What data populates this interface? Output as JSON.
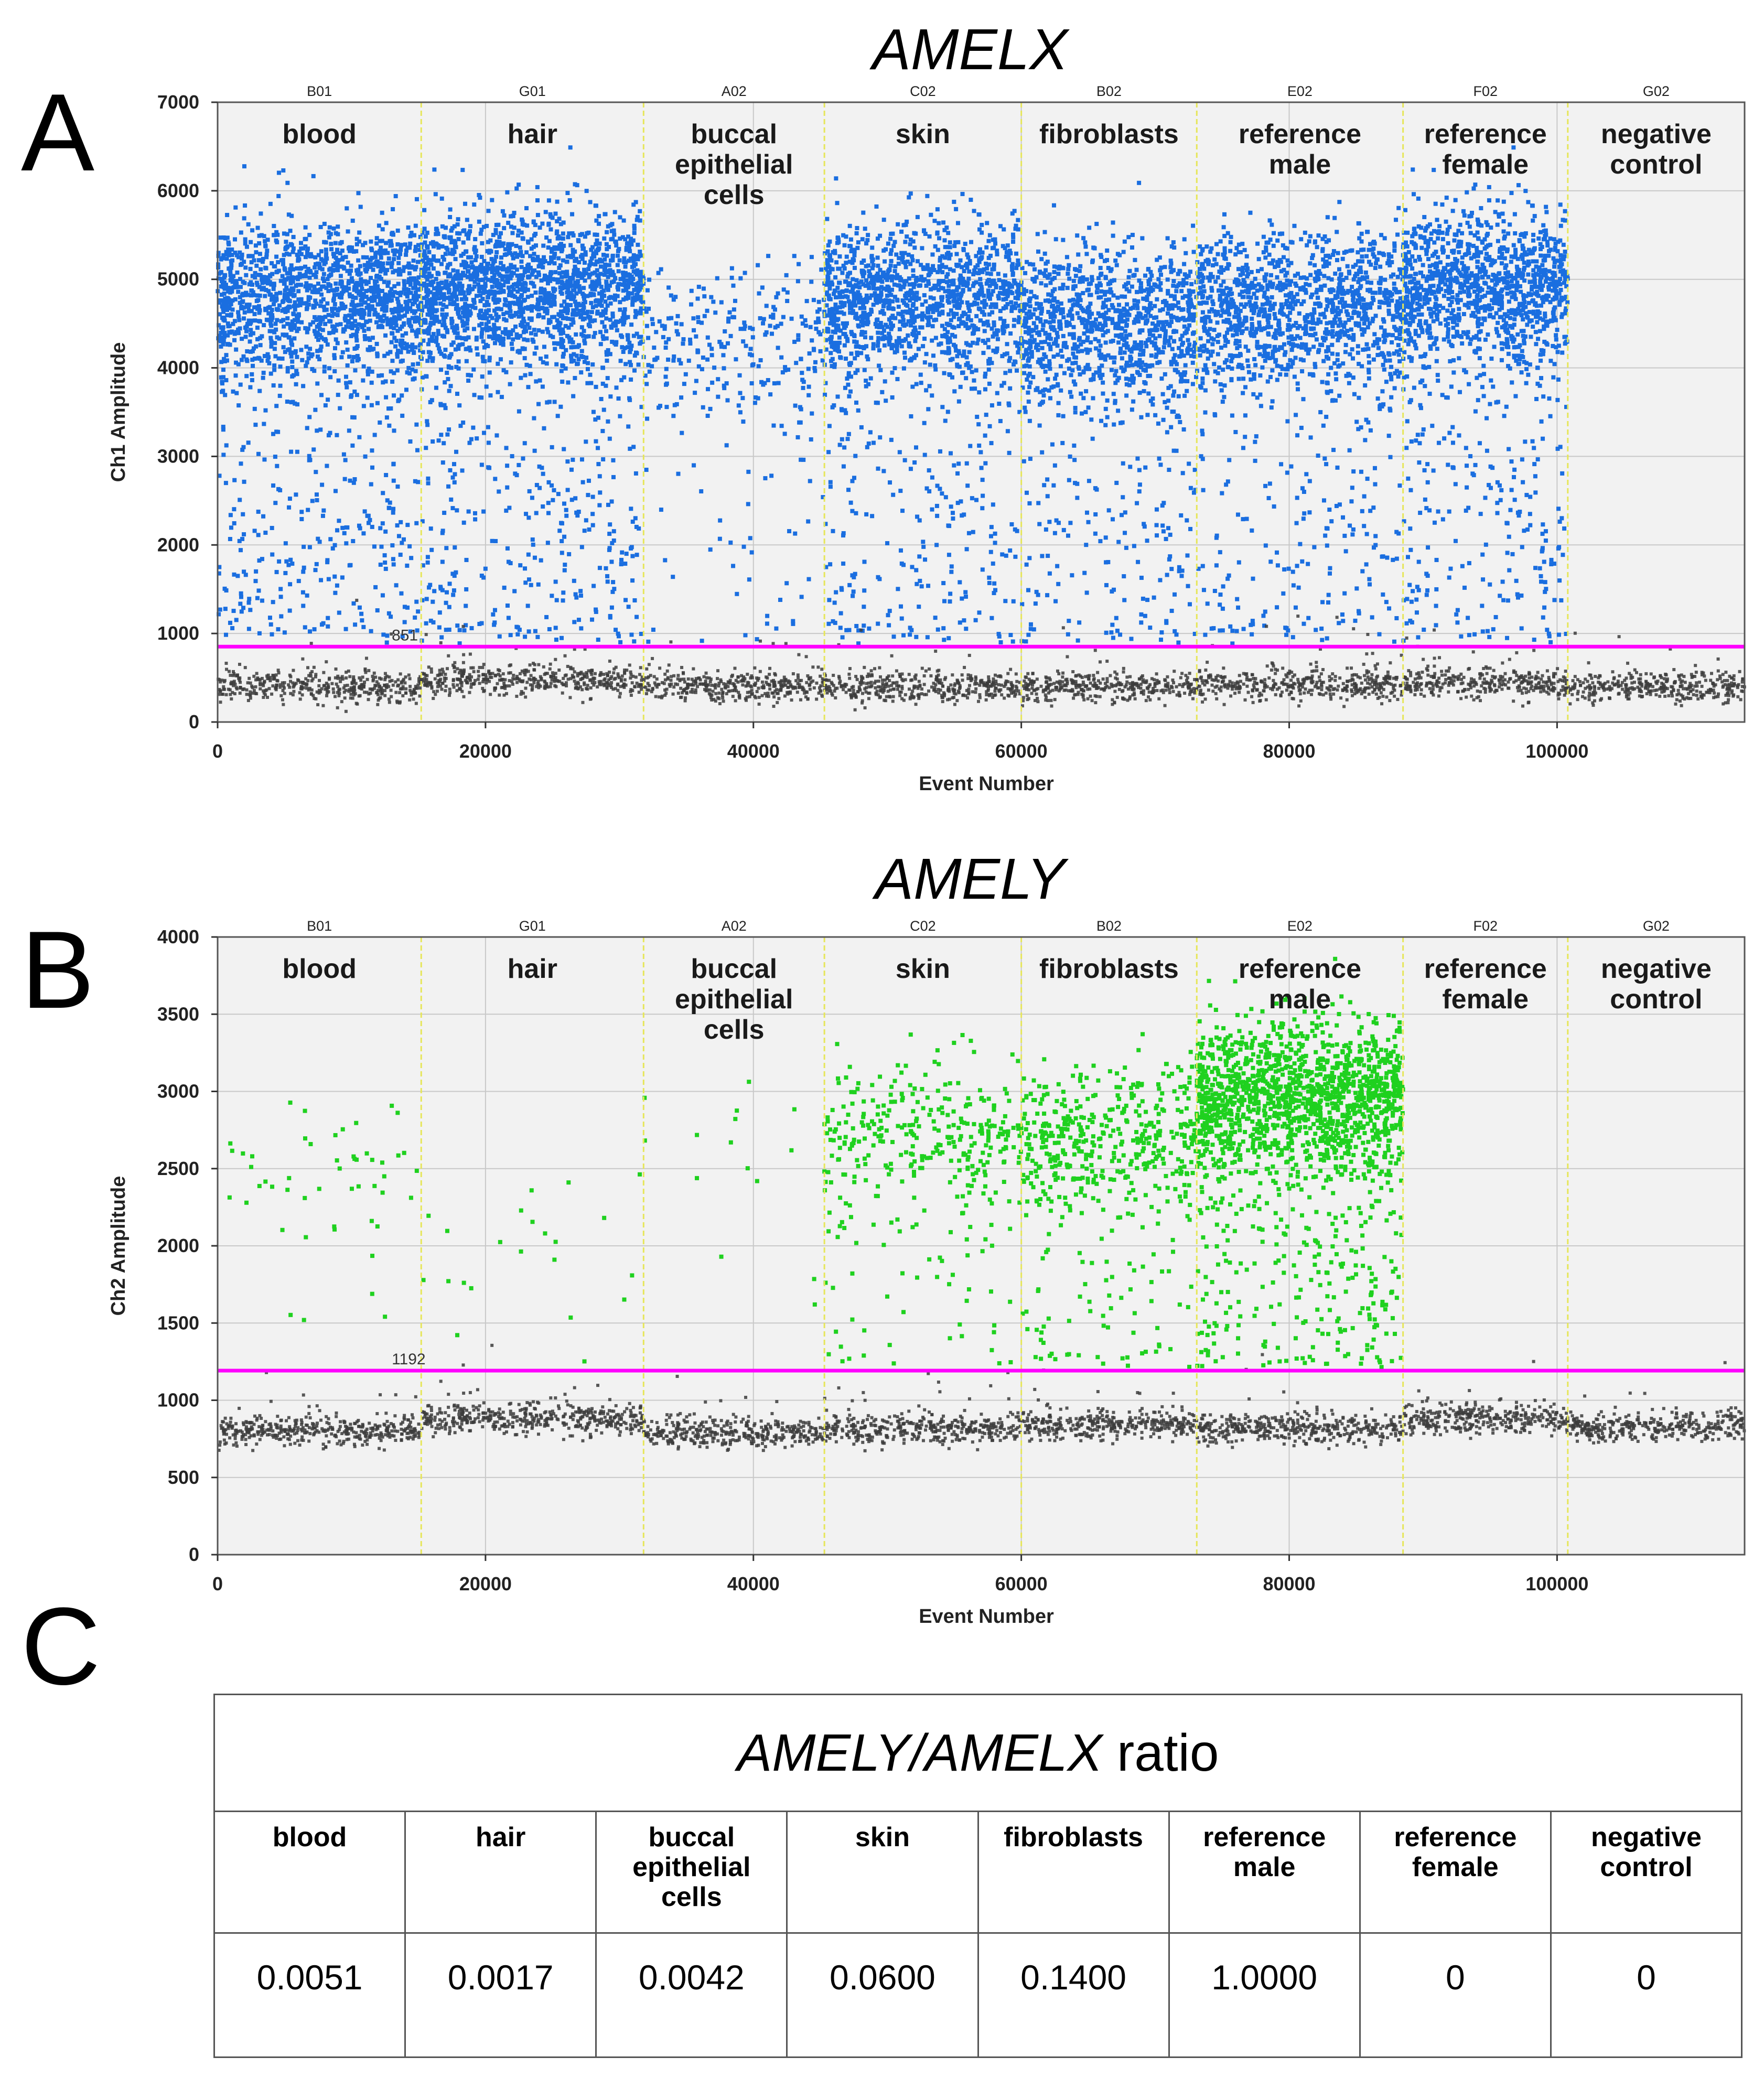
{
  "panels": [
    {
      "letter": "A",
      "title": "AMELX"
    },
    {
      "letter": "B",
      "title": "AMELY"
    },
    {
      "letter": "C"
    }
  ],
  "colors": {
    "ch1": "#1a6ee0",
    "ch2": "#1fd11f",
    "negative": "#3c3c3c",
    "threshold": "#ff00ff",
    "divider": "#e6e65a",
    "plot_bg": "#f2f2f2"
  },
  "chart_data": [
    {
      "type": "scatter",
      "title": "AMELX",
      "xlabel": "Event Number",
      "ylabel": "Ch1 Amplitude",
      "xlim": [
        0,
        114000
      ],
      "ylim": [
        0,
        7000
      ],
      "xticks": [
        0,
        20000,
        40000,
        60000,
        80000,
        100000
      ],
      "yticks": [
        0,
        1000,
        2000,
        3000,
        4000,
        5000,
        6000,
        7000
      ],
      "threshold": 851,
      "threshold_label": "851",
      "regions": [
        {
          "well": "B01",
          "sample": [
            "blood"
          ],
          "x_start": 0,
          "x_end": 15200,
          "pos_center": 4800,
          "pos_density": 1.0,
          "neg_level": 400
        },
        {
          "well": "G01",
          "sample": [
            "hair"
          ],
          "x_start": 15200,
          "x_end": 31800,
          "pos_center": 4900,
          "pos_density": 1.1,
          "neg_level": 470
        },
        {
          "well": "A02",
          "sample": [
            "buccal",
            "epithelial",
            "cells"
          ],
          "x_start": 31800,
          "x_end": 45300,
          "pos_center": 4300,
          "pos_density": 0.2,
          "neg_level": 400
        },
        {
          "well": "C02",
          "sample": [
            "skin"
          ],
          "x_start": 45300,
          "x_end": 60000,
          "pos_center": 4800,
          "pos_density": 0.9,
          "neg_level": 400
        },
        {
          "well": "B02",
          "sample": [
            "fibroblasts"
          ],
          "x_start": 60000,
          "x_end": 73100,
          "pos_center": 4500,
          "pos_density": 0.8,
          "neg_level": 400
        },
        {
          "well": "E02",
          "sample": [
            "reference",
            "male"
          ],
          "x_start": 73100,
          "x_end": 88500,
          "pos_center": 4700,
          "pos_density": 0.8,
          "neg_level": 420
        },
        {
          "well": "F02",
          "sample": [
            "reference",
            "female"
          ],
          "x_start": 88500,
          "x_end": 100800,
          "pos_center": 4900,
          "pos_density": 1.0,
          "neg_level": 430
        },
        {
          "well": "G02",
          "sample": [
            "negative",
            "control"
          ],
          "x_start": 100800,
          "x_end": 114000,
          "pos_center": 0,
          "pos_density": 0,
          "neg_level": 400
        }
      ]
    },
    {
      "type": "scatter",
      "title": "AMELY",
      "xlabel": "Event Number",
      "ylabel": "Ch2 Amplitude",
      "xlim": [
        0,
        114000
      ],
      "ylim": [
        0,
        4000
      ],
      "xticks": [
        0,
        20000,
        40000,
        60000,
        80000,
        100000
      ],
      "yticks": [
        0,
        500,
        1000,
        1500,
        2000,
        2500,
        3000,
        3500,
        4000
      ],
      "threshold": 1192,
      "threshold_label": "1192",
      "regions": [
        {
          "well": "B01",
          "sample": [
            "blood"
          ],
          "x_start": 0,
          "x_end": 15200,
          "pos_center": 2500,
          "pos_density": 0.03,
          "neg_level": 800
        },
        {
          "well": "G01",
          "sample": [
            "hair"
          ],
          "x_start": 15200,
          "x_end": 31800,
          "pos_center": 2000,
          "pos_density": 0.012,
          "neg_level": 880
        },
        {
          "well": "A02",
          "sample": [
            "buccal",
            "epithelial",
            "cells"
          ],
          "x_start": 31800,
          "x_end": 45300,
          "pos_center": 2600,
          "pos_density": 0.01,
          "neg_level": 790
        },
        {
          "well": "C02",
          "sample": [
            "skin"
          ],
          "x_start": 45300,
          "x_end": 60000,
          "pos_center": 2700,
          "pos_density": 0.22,
          "neg_level": 810
        },
        {
          "well": "B02",
          "sample": [
            "fibroblasts"
          ],
          "x_start": 60000,
          "x_end": 73100,
          "pos_center": 2700,
          "pos_density": 0.35,
          "neg_level": 840
        },
        {
          "well": "E02",
          "sample": [
            "reference",
            "male"
          ],
          "x_start": 73100,
          "x_end": 88500,
          "pos_center": 2950,
          "pos_density": 1.0,
          "neg_level": 820
        },
        {
          "well": "F02",
          "sample": [
            "reference",
            "female"
          ],
          "x_start": 88500,
          "x_end": 100800,
          "pos_center": 0,
          "pos_density": 0,
          "neg_level": 880
        },
        {
          "well": "G02",
          "sample": [
            "negative",
            "control"
          ],
          "x_start": 100800,
          "x_end": 114000,
          "pos_center": 0,
          "pos_density": 0,
          "neg_level": 830
        }
      ]
    },
    {
      "type": "table",
      "title_italic": "AMELY/AMELX",
      "title_rest": " ratio",
      "columns": [
        [
          "blood"
        ],
        [
          "hair"
        ],
        [
          "buccal",
          "epithelial",
          "cells"
        ],
        [
          "skin"
        ],
        [
          "fibroblasts"
        ],
        [
          "reference",
          "male"
        ],
        [
          "reference",
          "female"
        ],
        [
          "negative",
          "control"
        ]
      ],
      "values": [
        "0.0051",
        "0.0017",
        "0.0042",
        "0.0600",
        "0.1400",
        "1.0000",
        "0",
        "0"
      ]
    }
  ]
}
